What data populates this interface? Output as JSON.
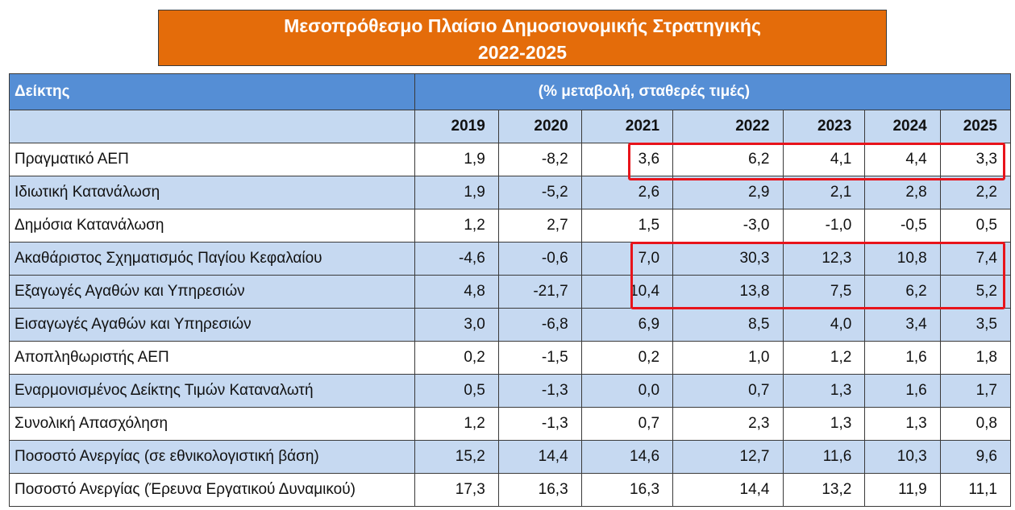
{
  "title": {
    "line1": "Μεσοπρόθεσμο Πλαίσιο Δημοσιονομικής Στρατηγικής",
    "line2": "2022-2025"
  },
  "table": {
    "header_label": "Δείκτης",
    "header_note": "(% μεταβολή, σταθερές τιμές)",
    "years": [
      "2019",
      "2020",
      "2021",
      "2022",
      "2023",
      "2024",
      "2025"
    ],
    "rows": [
      {
        "label": "Πραγματικό ΑΕΠ",
        "values": [
          "1,9",
          "-8,2",
          "3,6",
          "6,2",
          "4,1",
          "4,4",
          "3,3"
        ]
      },
      {
        "label": "Ιδιωτική Κατανάλωση",
        "values": [
          "1,9",
          "-5,2",
          "2,6",
          "2,9",
          "2,1",
          "2,8",
          "2,2"
        ]
      },
      {
        "label": "Δημόσια Κατανάλωση",
        "values": [
          "1,2",
          "2,7",
          "1,5",
          "-3,0",
          "-1,0",
          "-0,5",
          "0,5"
        ]
      },
      {
        "label": "Ακαθάριστος Σχηματισμός Παγίου Κεφαλαίου",
        "values": [
          "-4,6",
          "-0,6",
          "7,0",
          "30,3",
          "12,3",
          "10,8",
          "7,4"
        ]
      },
      {
        "label": "Εξαγωγές Αγαθών και Υπηρεσιών",
        "values": [
          "4,8",
          "-21,7",
          "10,4",
          "13,8",
          "7,5",
          "6,2",
          "5,2"
        ]
      },
      {
        "label": "Εισαγωγές Αγαθών και Υπηρεσιών",
        "values": [
          "3,0",
          "-6,8",
          "6,9",
          "8,5",
          "4,0",
          "3,4",
          "3,5"
        ]
      },
      {
        "label": "Αποπληθωριστής ΑΕΠ",
        "values": [
          "0,2",
          "-1,5",
          "0,2",
          "1,0",
          "1,2",
          "1,6",
          "1,8"
        ]
      },
      {
        "label": "Εναρμονισμένος Δείκτης Τιμών Καταναλωτή",
        "values": [
          "0,5",
          "-1,3",
          "0,0",
          "0,7",
          "1,3",
          "1,6",
          "1,7"
        ]
      },
      {
        "label": "Συνολική Απασχόληση",
        "values": [
          "1,2",
          "-1,3",
          "0,7",
          "2,3",
          "1,3",
          "1,3",
          "0,8"
        ]
      },
      {
        "label": "Ποσοστό Ανεργίας (σε εθνικολογιστική βάση)",
        "values": [
          "15,2",
          "14,4",
          "14,6",
          "12,7",
          "11,6",
          "10,3",
          "9,6"
        ]
      },
      {
        "label": "Ποσοστό Ανεργίας (Έρευνα Εργατικού Δυναμικού)",
        "values": [
          "17,3",
          "16,3",
          "16,3",
          "14,4",
          "13,2",
          "11,9",
          "11,1"
        ]
      }
    ]
  },
  "colors": {
    "title_bg": "#e46c0a",
    "header_bg": "#558ed5",
    "row_blue": "#c6d9f1",
    "highlight": "#e8141b"
  }
}
